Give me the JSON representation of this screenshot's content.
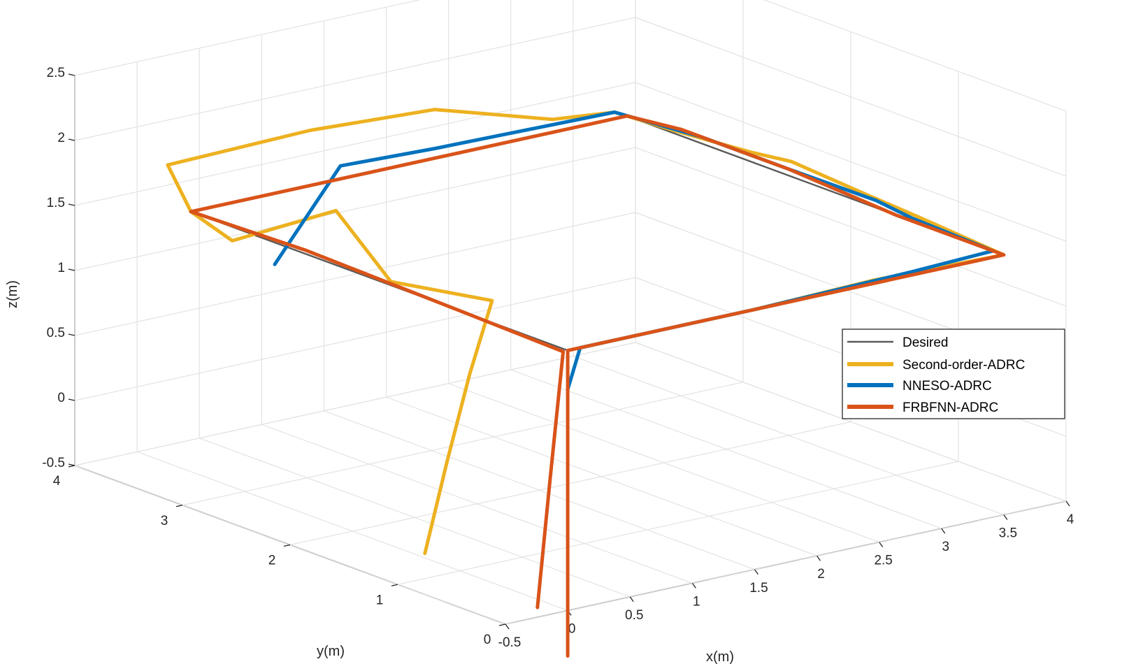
{
  "chart_data": {
    "type": "line3d",
    "title": "",
    "xlabel": "x(m)",
    "ylabel": "y(m)",
    "zlabel": "z(m)",
    "xlim": [
      -0.5,
      4
    ],
    "ylim": [
      0,
      4
    ],
    "zlim": [
      -0.5,
      2.5
    ],
    "grid": true,
    "x_ticks": [
      "-0.5",
      "0",
      "0.5",
      "1",
      "1.5",
      "2",
      "2.5",
      "3",
      "3.5",
      "4"
    ],
    "y_ticks": [
      "0",
      "1",
      "2",
      "3",
      "4"
    ],
    "z_ticks": [
      "-0.5",
      "0",
      "0.5",
      "1",
      "1.5",
      "2",
      "2.5"
    ],
    "legend_position": "right",
    "series": [
      {
        "name": "Desired",
        "color": "#5a5a5a",
        "points": [
          [
            0,
            0,
            0
          ],
          [
            0,
            0,
            1.5
          ],
          [
            3.5,
            0,
            1.5
          ],
          [
            3.5,
            3.5,
            1.5
          ],
          [
            0,
            3.5,
            1.5
          ],
          [
            0,
            0,
            1.5
          ]
        ]
      },
      {
        "name": "Second-order-ADRC",
        "color": "#edb120",
        "points": [
          [
            0.15,
            1.5,
            -0.55
          ],
          [
            0.2,
            1.35,
            0.2
          ],
          [
            0.25,
            1.2,
            0.9
          ],
          [
            0.3,
            1.05,
            1.5
          ],
          [
            0.05,
            1.7,
            1.5
          ],
          [
            0.3,
            2.5,
            1.75
          ],
          [
            -0.1,
            3.0,
            1.45
          ],
          [
            0,
            3.5,
            1.5
          ],
          [
            -0.1,
            3.6,
            1.85
          ],
          [
            1.0,
            3.55,
            1.9
          ],
          [
            2.0,
            3.55,
            1.85
          ],
          [
            2.9,
            3.5,
            1.6
          ],
          [
            3.4,
            3.5,
            1.55
          ],
          [
            3.45,
            3.0,
            1.55
          ],
          [
            3.45,
            2.3,
            1.6
          ],
          [
            3.35,
            1.8,
            1.7
          ],
          [
            3.55,
            1.4,
            1.55
          ],
          [
            3.5,
            0.8,
            1.55
          ],
          [
            3.5,
            0.0,
            1.5
          ],
          [
            2.5,
            0.05,
            1.5
          ],
          [
            1.5,
            0.0,
            1.5
          ]
        ]
      },
      {
        "name": "NNESO-ADRC",
        "color": "#0072bd",
        "points": [
          [
            0,
            0,
            1.2
          ],
          [
            0.1,
            0,
            1.5
          ],
          [
            1.5,
            0,
            1.5
          ],
          [
            2.8,
            0.05,
            1.5
          ],
          [
            3.5,
            0.1,
            1.5
          ],
          [
            3.45,
            0.8,
            1.55
          ],
          [
            3.6,
            1.3,
            1.5
          ],
          [
            3.5,
            2.0,
            1.55
          ],
          [
            3.5,
            2.8,
            1.55
          ],
          [
            3.4,
            3.5,
            1.55
          ],
          [
            2.0,
            3.55,
            1.55
          ],
          [
            1.2,
            3.5,
            1.6
          ],
          [
            0.5,
            3.3,
            1.05
          ]
        ]
      },
      {
        "name": "FRBFNN-ADRC",
        "color": "#d95319",
        "points": [
          [
            0,
            0,
            -0.85
          ],
          [
            0,
            0,
            0.5
          ],
          [
            0,
            0,
            1.5
          ],
          [
            1.5,
            0,
            1.5
          ],
          [
            3.5,
            0,
            1.5
          ],
          [
            3.5,
            1.0,
            1.5
          ],
          [
            3.5,
            2.0,
            1.55
          ],
          [
            3.5,
            3.0,
            1.55
          ],
          [
            3.5,
            3.5,
            1.5
          ],
          [
            2.0,
            3.5,
            1.5
          ],
          [
            0,
            3.5,
            1.5
          ],
          [
            0.05,
            2.5,
            1.5
          ],
          [
            0,
            1.0,
            1.5
          ],
          [
            0.05,
            0.1,
            1.45
          ],
          [
            -0.1,
            0.05,
            0.5
          ],
          [
            -0.2,
            0.05,
            -0.45
          ]
        ]
      }
    ]
  }
}
